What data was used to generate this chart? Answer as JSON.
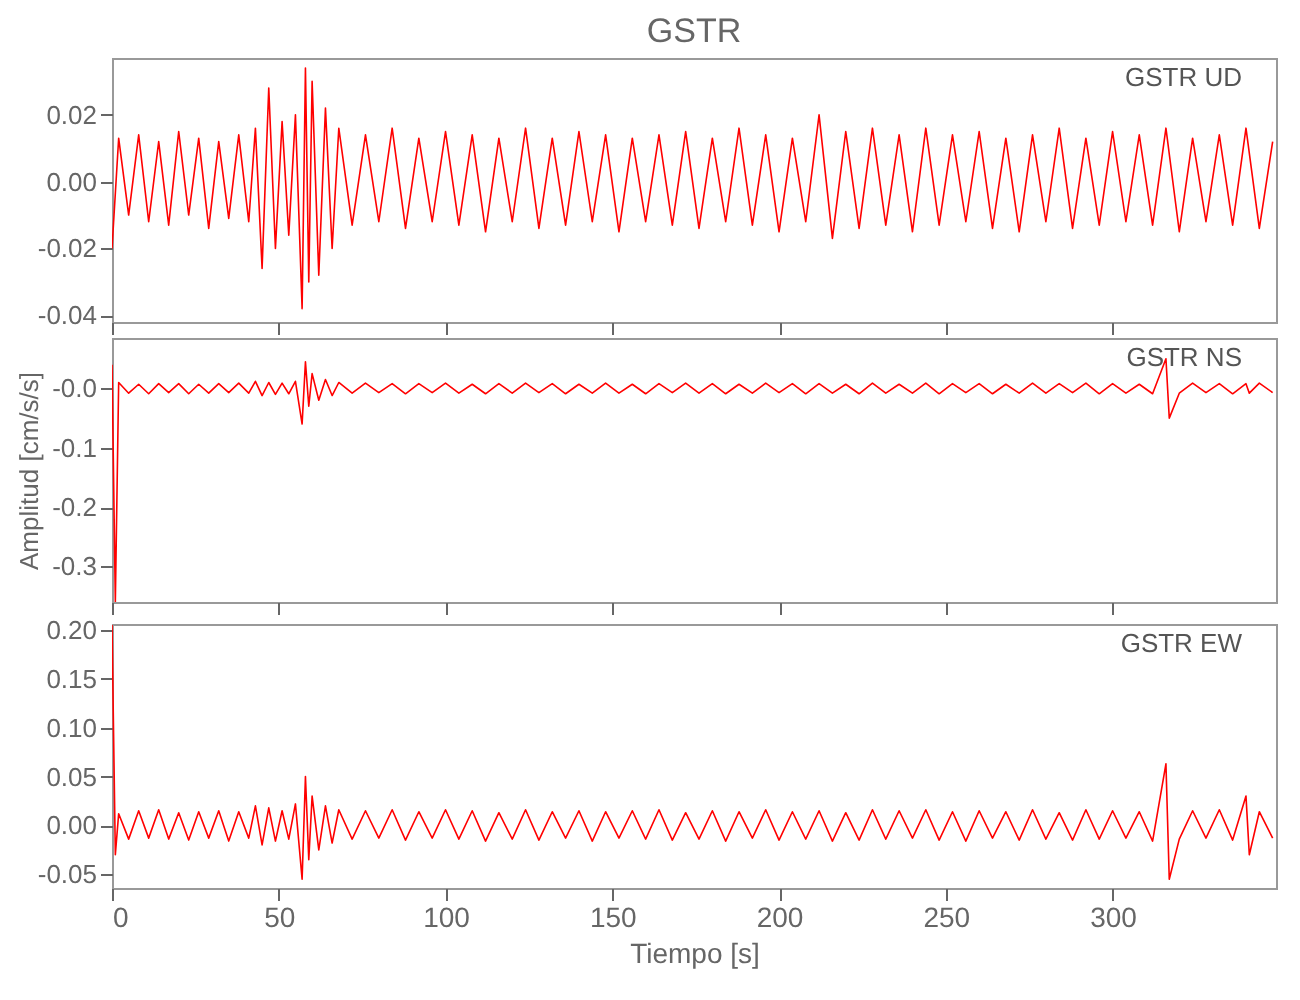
{
  "chart_data": [
    {
      "type": "line",
      "title": "GSTR",
      "annotations": [
        "GSTR   UD"
      ],
      "tick_labels": "y",
      "xlim": [
        0,
        349
      ],
      "xticks": [
        0,
        50,
        100,
        150,
        200,
        250,
        300
      ],
      "ylim": [
        -0.042,
        0.037
      ],
      "yticks": [
        -0.04,
        -0.02,
        {
          "value": 0,
          "label": "0.00"
        },
        0.02
      ],
      "x": [
        0,
        2,
        5,
        8,
        11,
        14,
        17,
        20,
        23,
        26,
        29,
        32,
        35,
        38,
        41,
        43,
        45,
        47,
        49,
        51,
        53,
        55,
        57,
        58,
        59,
        60,
        62,
        64,
        66,
        68,
        72,
        76,
        80,
        84,
        88,
        92,
        96,
        100,
        104,
        108,
        112,
        116,
        120,
        124,
        128,
        132,
        136,
        140,
        144,
        148,
        152,
        156,
        160,
        164,
        168,
        172,
        176,
        180,
        184,
        188,
        192,
        196,
        200,
        204,
        208,
        212,
        216,
        220,
        224,
        228,
        232,
        236,
        240,
        244,
        248,
        252,
        256,
        260,
        264,
        268,
        272,
        276,
        280,
        284,
        288,
        292,
        296,
        300,
        304,
        308,
        312,
        316,
        320,
        324,
        328,
        332,
        336,
        340,
        344,
        348
      ],
      "series": [
        {
          "color": "#ff0000",
          "values": [
            -0.02,
            0.013,
            -0.01,
            0.014,
            -0.012,
            0.012,
            -0.013,
            0.015,
            -0.01,
            0.013,
            -0.014,
            0.012,
            -0.011,
            0.014,
            -0.012,
            0.016,
            -0.026,
            0.028,
            -0.02,
            0.018,
            -0.016,
            0.02,
            -0.038,
            0.034,
            -0.03,
            0.03,
            -0.028,
            0.022,
            -0.02,
            0.016,
            -0.013,
            0.014,
            -0.012,
            0.016,
            -0.014,
            0.013,
            -0.012,
            0.015,
            -0.013,
            0.014,
            -0.015,
            0.013,
            -0.012,
            0.016,
            -0.014,
            0.013,
            -0.013,
            0.015,
            -0.012,
            0.014,
            -0.015,
            0.013,
            -0.012,
            0.014,
            -0.013,
            0.015,
            -0.014,
            0.013,
            -0.012,
            0.016,
            -0.013,
            0.014,
            -0.015,
            0.013,
            -0.012,
            0.02,
            -0.017,
            0.015,
            -0.014,
            0.016,
            -0.013,
            0.014,
            -0.015,
            0.016,
            -0.013,
            0.014,
            -0.012,
            0.015,
            -0.014,
            0.013,
            -0.015,
            0.014,
            -0.012,
            0.016,
            -0.014,
            0.013,
            -0.013,
            0.015,
            -0.012,
            0.014,
            -0.013,
            0.016,
            -0.015,
            0.013,
            -0.012,
            0.014,
            -0.013,
            0.016,
            -0.014,
            0.012
          ]
        }
      ]
    },
    {
      "type": "line",
      "ylabel": "Amplitud [cm/s/s]",
      "annotations": [
        "GSTR   NS"
      ],
      "tick_labels": "y",
      "xlim": [
        0,
        349
      ],
      "xticks": [
        0,
        50,
        100,
        150,
        200,
        250,
        300
      ],
      "ylim": [
        -0.36,
        0.085
      ],
      "yticks": [
        -0.3,
        -0.2,
        -0.1,
        {
          "value": 0,
          "label": "-0.0"
        }
      ],
      "x": [
        0,
        1,
        2,
        5,
        8,
        11,
        14,
        17,
        20,
        23,
        26,
        29,
        32,
        35,
        38,
        41,
        43,
        45,
        47,
        49,
        51,
        53,
        55,
        57,
        58,
        59,
        60,
        62,
        64,
        66,
        68,
        72,
        76,
        80,
        84,
        88,
        92,
        96,
        100,
        104,
        108,
        112,
        116,
        120,
        124,
        128,
        132,
        136,
        140,
        144,
        148,
        152,
        156,
        160,
        164,
        168,
        172,
        176,
        180,
        184,
        188,
        192,
        196,
        200,
        204,
        208,
        212,
        216,
        220,
        224,
        228,
        232,
        236,
        240,
        244,
        248,
        252,
        256,
        260,
        264,
        268,
        272,
        276,
        280,
        284,
        288,
        292,
        296,
        300,
        304,
        308,
        312,
        316,
        317,
        320,
        324,
        328,
        332,
        336,
        340,
        341,
        344,
        348
      ],
      "series": [
        {
          "color": "#ff0000",
          "values": [
            0.04,
            -0.36,
            0.01,
            -0.008,
            0.007,
            -0.009,
            0.008,
            -0.007,
            0.008,
            -0.009,
            0.007,
            -0.008,
            0.008,
            -0.007,
            0.009,
            -0.008,
            0.012,
            -0.012,
            0.01,
            -0.01,
            0.009,
            -0.009,
            0.012,
            -0.06,
            0.045,
            -0.03,
            0.025,
            -0.02,
            0.015,
            -0.012,
            0.01,
            -0.008,
            0.009,
            -0.007,
            0.008,
            -0.009,
            0.008,
            -0.007,
            0.009,
            -0.008,
            0.007,
            -0.009,
            0.008,
            -0.008,
            0.009,
            -0.007,
            0.008,
            -0.009,
            0.007,
            -0.008,
            0.009,
            -0.008,
            0.007,
            -0.009,
            0.008,
            -0.007,
            0.009,
            -0.008,
            0.008,
            -0.009,
            0.007,
            -0.008,
            0.009,
            -0.007,
            0.008,
            -0.009,
            0.008,
            -0.008,
            0.007,
            -0.009,
            0.009,
            -0.008,
            0.007,
            -0.008,
            0.009,
            -0.009,
            0.008,
            -0.007,
            0.008,
            -0.009,
            0.007,
            -0.008,
            0.009,
            -0.008,
            0.008,
            -0.007,
            0.009,
            -0.009,
            0.008,
            -0.008,
            0.007,
            -0.009,
            0.05,
            -0.05,
            -0.008,
            0.009,
            -0.007,
            0.008,
            -0.009,
            0.008,
            -0.008,
            0.009,
            -0.007
          ]
        }
      ]
    },
    {
      "type": "line",
      "xlabel": "Tiempo [s]",
      "annotations": [
        "GSTR   EW"
      ],
      "xlim": [
        0,
        349
      ],
      "xticks": [
        0,
        50,
        100,
        150,
        200,
        250,
        300
      ],
      "ylim": [
        -0.064,
        0.206
      ],
      "yticks": [
        -0.05,
        {
          "value": 0,
          "label": "0.00"
        },
        0.05,
        {
          "value": 0.1,
          "label": "0.10"
        },
        0.15,
        {
          "value": 0.2,
          "label": "0.20"
        }
      ],
      "x": [
        0,
        1,
        2,
        5,
        8,
        11,
        14,
        17,
        20,
        23,
        26,
        29,
        32,
        35,
        38,
        41,
        43,
        45,
        47,
        49,
        51,
        53,
        55,
        57,
        58,
        59,
        60,
        62,
        64,
        66,
        68,
        72,
        76,
        80,
        84,
        88,
        92,
        96,
        100,
        104,
        108,
        112,
        116,
        120,
        124,
        128,
        132,
        136,
        140,
        144,
        148,
        152,
        156,
        160,
        164,
        168,
        172,
        176,
        180,
        184,
        188,
        192,
        196,
        200,
        204,
        208,
        212,
        216,
        220,
        224,
        228,
        232,
        236,
        240,
        244,
        248,
        252,
        256,
        260,
        264,
        268,
        272,
        276,
        280,
        284,
        288,
        292,
        296,
        300,
        304,
        308,
        312,
        316,
        317,
        320,
        324,
        328,
        332,
        336,
        340,
        341,
        344,
        348
      ],
      "series": [
        {
          "color": "#ff0000",
          "values": [
            0.205,
            -0.03,
            0.012,
            -0.014,
            0.015,
            -0.013,
            0.016,
            -0.014,
            0.013,
            -0.015,
            0.014,
            -0.013,
            0.015,
            -0.016,
            0.014,
            -0.013,
            0.02,
            -0.02,
            0.018,
            -0.016,
            0.015,
            -0.014,
            0.022,
            -0.055,
            0.05,
            -0.035,
            0.03,
            -0.025,
            0.02,
            -0.018,
            0.016,
            -0.014,
            0.015,
            -0.013,
            0.016,
            -0.015,
            0.014,
            -0.013,
            0.016,
            -0.014,
            0.015,
            -0.016,
            0.013,
            -0.014,
            0.016,
            -0.015,
            0.014,
            -0.013,
            0.015,
            -0.016,
            0.014,
            -0.013,
            0.015,
            -0.014,
            0.016,
            -0.015,
            0.013,
            -0.014,
            0.015,
            -0.016,
            0.014,
            -0.013,
            0.016,
            -0.015,
            0.014,
            -0.014,
            0.015,
            -0.016,
            0.013,
            -0.015,
            0.016,
            -0.014,
            0.015,
            -0.013,
            0.016,
            -0.015,
            0.014,
            -0.016,
            0.015,
            -0.013,
            0.014,
            -0.015,
            0.016,
            -0.014,
            0.013,
            -0.015,
            0.016,
            -0.014,
            0.015,
            -0.013,
            0.014,
            -0.016,
            0.063,
            -0.055,
            -0.014,
            0.015,
            -0.013,
            0.016,
            -0.015,
            0.03,
            -0.03,
            0.014,
            -0.013
          ]
        }
      ]
    }
  ]
}
